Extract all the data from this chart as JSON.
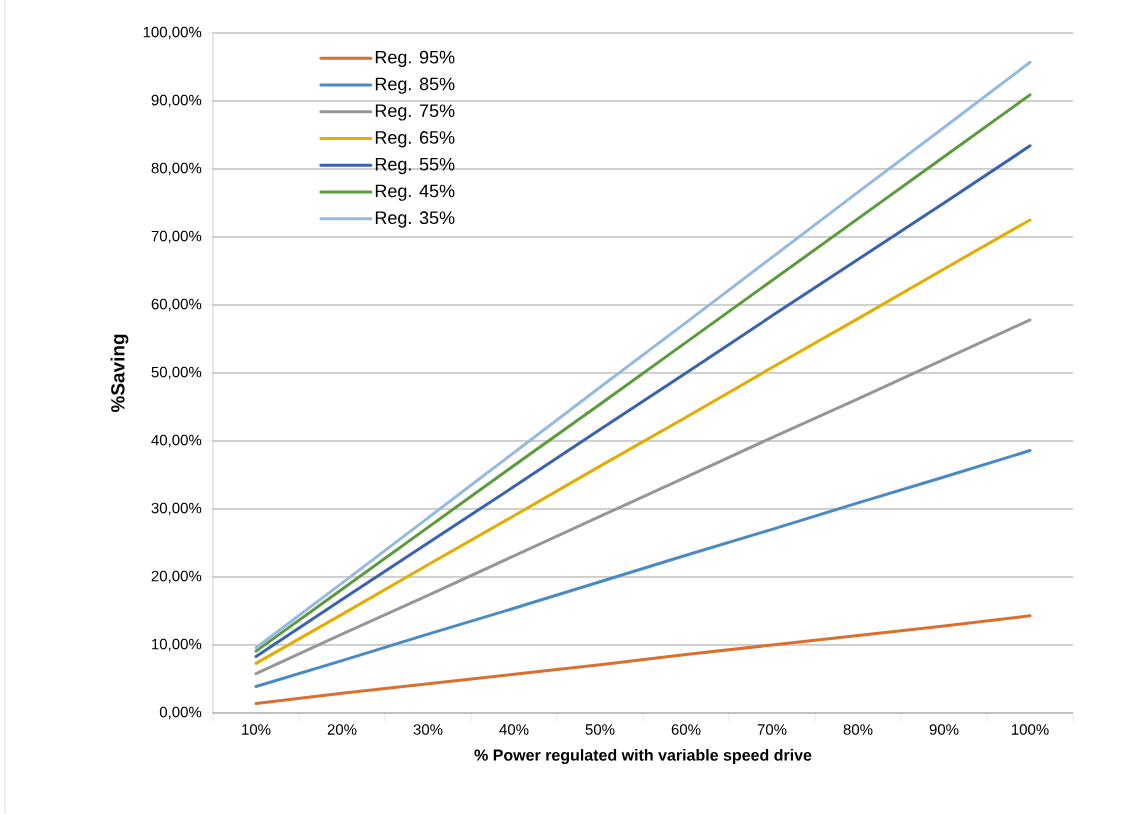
{
  "chart_data": {
    "type": "line",
    "xlabel": "% Power regulated with variable speed drive",
    "ylabel": "%Saving",
    "categories": [
      "10%",
      "20%",
      "30%",
      "40%",
      "50%",
      "60%",
      "70%",
      "80%",
      "90%",
      "100%"
    ],
    "series": [
      {
        "name": "Reg. 95%",
        "color": "#d9702f",
        "values": [
          1.4,
          2.9,
          4.3,
          5.7,
          7.1,
          8.6,
          10.0,
          11.4,
          12.8,
          14.3
        ]
      },
      {
        "name": "Reg. 85%",
        "color": "#4a8ac4",
        "values": [
          3.9,
          7.7,
          11.6,
          15.4,
          19.3,
          23.2,
          27.0,
          30.9,
          34.7,
          38.6
        ]
      },
      {
        "name": "Reg. 75%",
        "color": "#969696",
        "values": [
          5.8,
          11.6,
          17.3,
          23.1,
          28.9,
          34.7,
          40.5,
          46.2,
          52.0,
          57.8
        ]
      },
      {
        "name": "Reg. 65%",
        "color": "#e4ac00",
        "values": [
          7.3,
          14.5,
          21.8,
          29.0,
          36.3,
          43.5,
          50.8,
          58.0,
          65.3,
          72.5
        ]
      },
      {
        "name": "Reg. 55%",
        "color": "#3a62ae",
        "values": [
          8.3,
          16.7,
          25.0,
          33.3,
          41.7,
          50.0,
          58.4,
          66.7,
          75.0,
          83.4
        ]
      },
      {
        "name": "Reg. 45%",
        "color": "#5c9a3c",
        "values": [
          9.1,
          18.2,
          27.3,
          36.4,
          45.4,
          54.5,
          63.6,
          72.7,
          81.8,
          90.9
        ]
      },
      {
        "name": "Reg. 35%",
        "color": "#96b9e0",
        "values": [
          9.6,
          19.1,
          28.7,
          38.3,
          47.9,
          57.4,
          67.0,
          76.6,
          86.1,
          95.7
        ]
      }
    ],
    "ylim": [
      0,
      100
    ],
    "yticks": [
      {
        "value": 0,
        "label": "0,00%"
      },
      {
        "value": 10,
        "label": "10,00%"
      },
      {
        "value": 20,
        "label": "20,00%"
      },
      {
        "value": 30,
        "label": "30,00%"
      },
      {
        "value": 40,
        "label": "40,00%"
      },
      {
        "value": 50,
        "label": "50,00%"
      },
      {
        "value": 60,
        "label": "60,00%"
      },
      {
        "value": 70,
        "label": "70,00%"
      },
      {
        "value": 80,
        "label": "80,00%"
      },
      {
        "value": 90,
        "label": "90,00%"
      },
      {
        "value": 100,
        "label": "100,00%"
      }
    ],
    "grid": "y",
    "legend": "top left"
  }
}
